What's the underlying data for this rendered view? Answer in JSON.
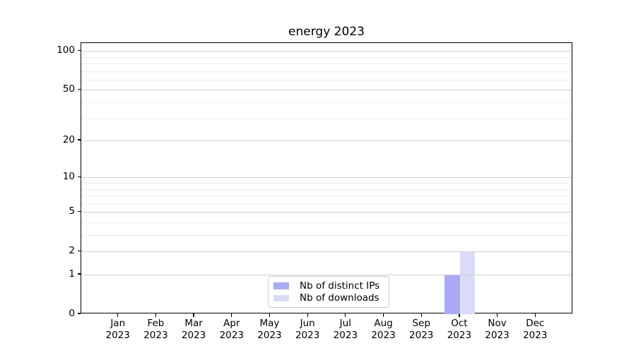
{
  "chart_data": {
    "type": "bar",
    "title": "energy 2023",
    "categories": [
      "Jan",
      "Feb",
      "Mar",
      "Apr",
      "May",
      "Jun",
      "Jul",
      "Aug",
      "Sep",
      "Oct",
      "Nov",
      "Dec"
    ],
    "category_year": "2023",
    "series": [
      {
        "name": "Nb of distinct IPs",
        "color": "#aaaaf7",
        "values": [
          0,
          0,
          0,
          0,
          0,
          0,
          0,
          0,
          0,
          1,
          0,
          0
        ]
      },
      {
        "name": "Nb of downloads",
        "color": "#dbdbf8",
        "values": [
          0,
          0,
          0,
          0,
          0,
          0,
          0,
          0,
          0,
          2,
          0,
          0
        ]
      }
    ],
    "xlabel": "",
    "ylabel": "",
    "yscale": "log1p",
    "ylim": [
      0,
      115
    ],
    "yticks": [
      0,
      1,
      2,
      5,
      10,
      20,
      50,
      100
    ],
    "yticks_minor": [
      3,
      4,
      6,
      7,
      8,
      9,
      30,
      40,
      60,
      70,
      80,
      90
    ],
    "grid": true,
    "bar_width_fraction": 0.4,
    "legend_position": "lower center"
  },
  "colors": {
    "grid_major": "#d0d0d0",
    "grid_minor": "#ededed",
    "axis": "#000000",
    "text": "#000000",
    "background": "#ffffff",
    "legend_border": "#cccccc"
  }
}
